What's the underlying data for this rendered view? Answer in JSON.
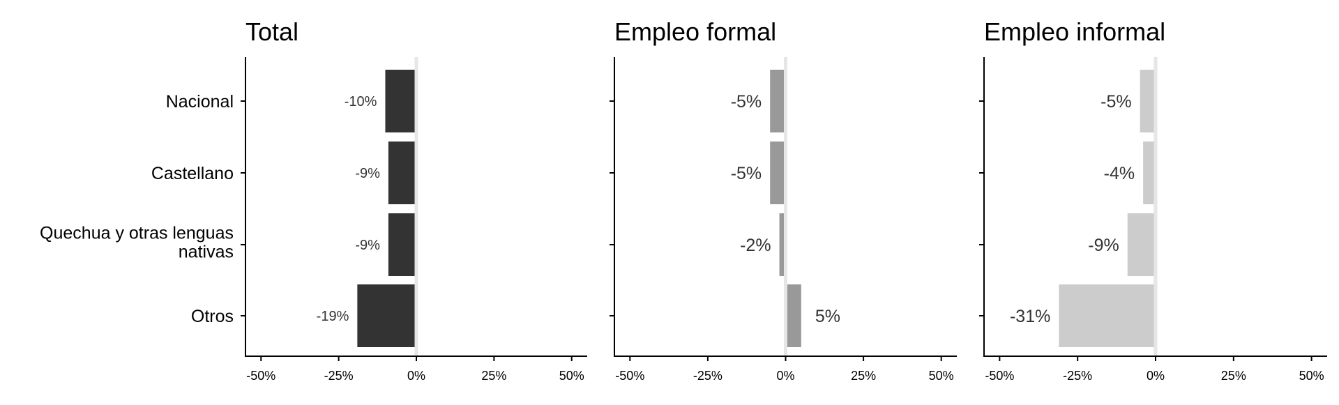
{
  "categories": [
    "Nacional",
    "Castellano",
    "Quechua y otras lenguas nativas",
    "Otros"
  ],
  "category_lines": [
    [
      "Nacional"
    ],
    [
      "Castellano"
    ],
    [
      "Quechua y otras lenguas",
      "nativas"
    ],
    [
      "Otros"
    ]
  ],
  "x_ticks": [
    -50,
    -25,
    0,
    25,
    50
  ],
  "x_tick_labels": [
    "-50%",
    "-25%",
    "0%",
    "25%",
    "50%"
  ],
  "xlim": [
    -55,
    55
  ],
  "chart_data": [
    {
      "type": "bar",
      "orientation": "horizontal",
      "title": "Total",
      "categories": [
        "Nacional",
        "Castellano",
        "Quechua y otras lenguas nativas",
        "Otros"
      ],
      "values": [
        -10,
        -9,
        -9,
        -19
      ],
      "data_labels": [
        "-10%",
        "-9%",
        "-9%",
        "-19%"
      ],
      "bar_color": "#333333",
      "xlim": [
        -55,
        55
      ]
    },
    {
      "type": "bar",
      "orientation": "horizontal",
      "title": "Empleo formal",
      "categories": [
        "Nacional",
        "Castellano",
        "Quechua y otras lenguas nativas",
        "Otros"
      ],
      "values": [
        -5,
        -5,
        -2,
        5
      ],
      "data_labels": [
        "-5%",
        "-5%",
        "-2%",
        "5%"
      ],
      "bar_color": "#999999",
      "xlim": [
        -55,
        55
      ]
    },
    {
      "type": "bar",
      "orientation": "horizontal",
      "title": "Empleo informal",
      "categories": [
        "Nacional",
        "Castellano",
        "Quechua y otras lenguas nativas",
        "Otros"
      ],
      "values": [
        -5,
        -4,
        -9,
        -31
      ],
      "data_labels": [
        "-5%",
        "-4%",
        "-9%",
        "-31%"
      ],
      "bar_color": "#cccccc",
      "xlim": [
        -55,
        55
      ]
    }
  ],
  "colors": {
    "zero_line": "#e6e6e6",
    "axis": "#000000",
    "label_text": "#333333"
  }
}
